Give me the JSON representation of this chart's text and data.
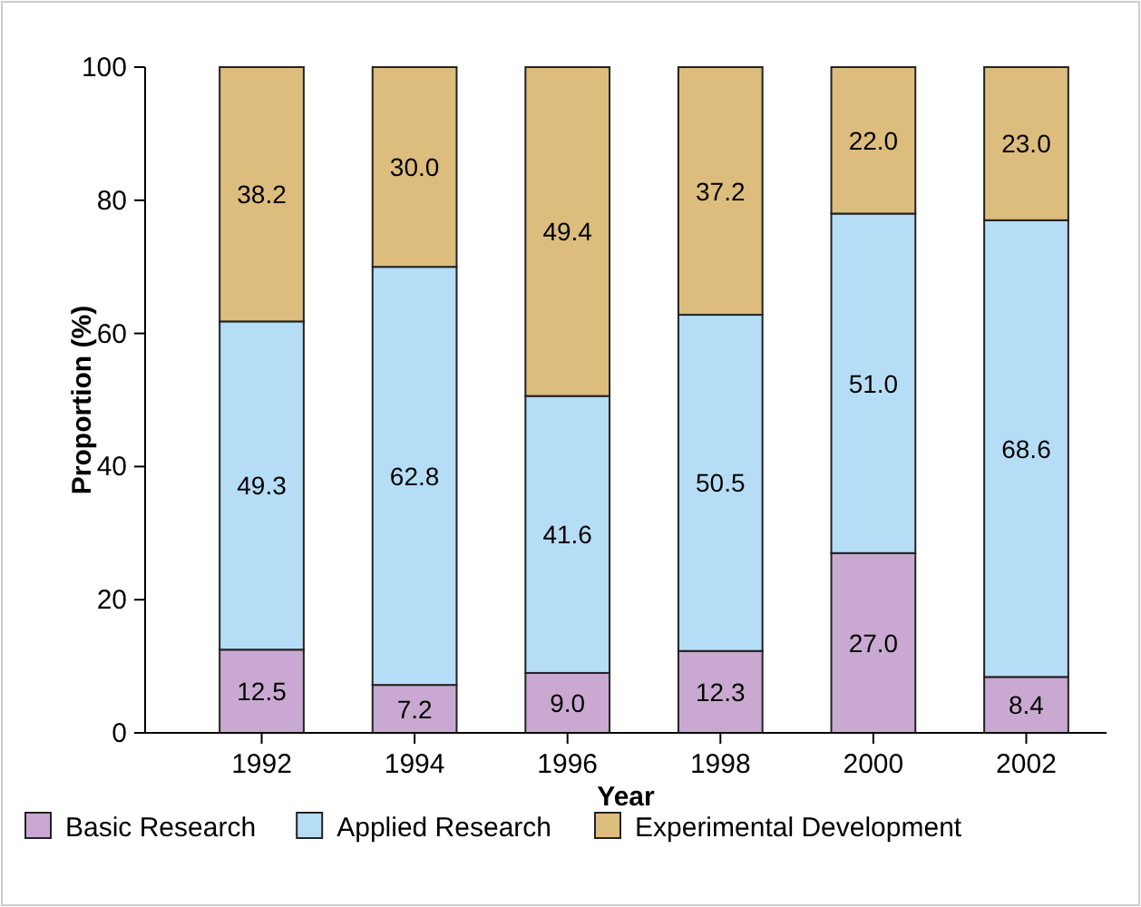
{
  "chart_data": {
    "type": "bar",
    "stacked": true,
    "xlabel": "Year",
    "ylabel": "Proportion (%)",
    "categories": [
      "1992",
      "1994",
      "1996",
      "1998",
      "2000",
      "2002"
    ],
    "series": [
      {
        "name": "Basic Research",
        "color": "#c9a9d1",
        "values": [
          12.5,
          7.2,
          9.0,
          12.3,
          27.0,
          8.4
        ],
        "value_labels": [
          "12.5",
          "7.2",
          "9.0",
          "12.3",
          "27.0",
          "8.4"
        ]
      },
      {
        "name": "Applied Research",
        "color": "#b6ddf6",
        "values": [
          49.3,
          62.8,
          41.6,
          50.5,
          51.0,
          68.6
        ],
        "value_labels": [
          "49.3",
          "62.8",
          "41.6",
          "50.5",
          "51.0",
          "68.6"
        ]
      },
      {
        "name": "Experimental Development",
        "color": "#dcbd7e",
        "values": [
          38.2,
          30.0,
          49.4,
          37.2,
          22.0,
          23.0
        ],
        "value_labels": [
          "38.2",
          "30.0",
          "49.4",
          "37.2",
          "22.0",
          "23.0"
        ]
      }
    ],
    "ylim": [
      0,
      100
    ],
    "yticks": [
      0,
      20,
      40,
      60,
      80,
      100
    ],
    "legend": "bottom",
    "grid": false
  }
}
